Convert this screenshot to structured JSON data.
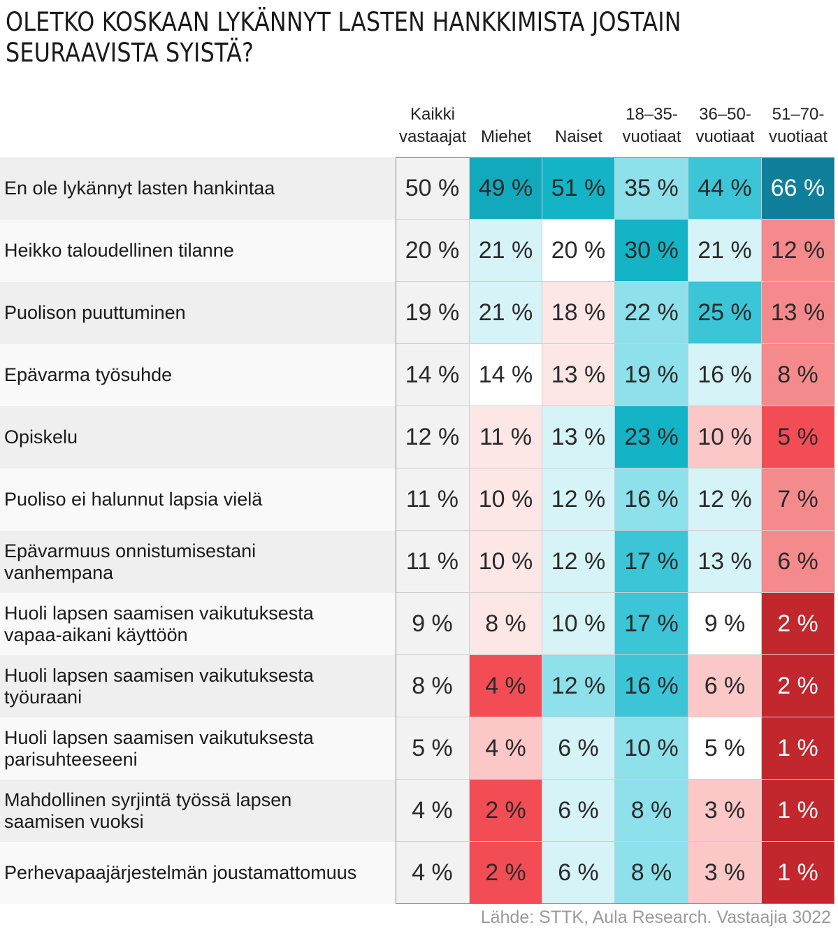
{
  "title": "OLETKO KOSKAAN LYKÄNNYT LASTEN HANKKIMISTA JOSTAIN SEURAAVISTA SYISTÄ?",
  "source": "Lähde: STTK, Aula Research. Vastaajia 3022",
  "colors": {
    "teal_dark": "#0f7f9b",
    "teal": "#14b3c6",
    "teal_mid": "#3cc5d6",
    "teal_light": "#8ee0ea",
    "teal_pale": "#d6f3f7",
    "red_dark": "#c1272d",
    "red": "#f24d55",
    "red_mid": "#f58a8c",
    "red_light": "#fbc7c7",
    "red_pale": "#fde6e6"
  },
  "chart_data": {
    "type": "table",
    "title": "OLETKO KOSKAAN LYKÄNNYT LASTEN HANKKIMISTA JOSTAIN SEURAAVISTA SYISTÄ?",
    "columns": [
      "Kaikki\nvastaajat",
      "Miehet",
      "Naiset",
      "18–35-\nvuotiaat",
      "36–50-\nvuotiaat",
      "51–70-\nvuotiaat"
    ],
    "rows": [
      {
        "label": "En ole lykännyt lasten hankintaa",
        "values": [
          50,
          49,
          51,
          35,
          44,
          66
        ]
      },
      {
        "label": "Heikko taloudellinen tilanne",
        "values": [
          20,
          21,
          20,
          30,
          21,
          12
        ]
      },
      {
        "label": "Puolison puuttuminen",
        "values": [
          19,
          21,
          18,
          22,
          25,
          13
        ]
      },
      {
        "label": "Epävarma työsuhde",
        "values": [
          14,
          14,
          13,
          19,
          16,
          8
        ]
      },
      {
        "label": "Opiskelu",
        "values": [
          12,
          11,
          13,
          23,
          10,
          5
        ]
      },
      {
        "label": "Puoliso ei halunnut lapsia vielä",
        "values": [
          11,
          10,
          12,
          16,
          12,
          7
        ]
      },
      {
        "label": "Epävarmuus onnistumisestani\nvanhempana",
        "values": [
          11,
          10,
          12,
          17,
          13,
          6
        ]
      },
      {
        "label": "Huoli lapsen saamisen vaikutuksesta\nvapaa-aikani  käyttöön",
        "values": [
          9,
          8,
          10,
          17,
          9,
          2
        ]
      },
      {
        "label": "Huoli lapsen saamisen vaikutuksesta\ntyöuraani",
        "values": [
          8,
          4,
          12,
          16,
          6,
          2
        ]
      },
      {
        "label": "Huoli lapsen saamisen vaikutuksesta\nparisuhteeseeni",
        "values": [
          5,
          4,
          6,
          10,
          5,
          1
        ]
      },
      {
        "label": "Mahdollinen syrjintä työssä lapsen\nsaamisen vuoksi",
        "values": [
          4,
          2,
          6,
          8,
          3,
          1
        ]
      },
      {
        "label": "Perhevapaajärjestelmän joustamattomuus",
        "values": [
          4,
          2,
          6,
          8,
          3,
          1
        ]
      }
    ],
    "unit": "%"
  }
}
